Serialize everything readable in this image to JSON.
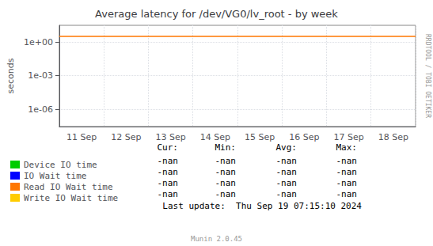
{
  "chart_data": {
    "type": "line",
    "title": "Average latency for /dev/VG0/lv_root - by week",
    "ylabel": "seconds",
    "categories": [
      "11 Sep",
      "12 Sep",
      "13 Sep",
      "14 Sep",
      "15 Sep",
      "16 Sep",
      "17 Sep",
      "18 Sep"
    ],
    "series": [
      {
        "name": "Device IO time",
        "color": "#00cc00",
        "values": [
          null,
          null,
          null,
          null,
          null,
          null,
          null,
          null
        ],
        "table_values": [
          "-nan",
          "-nan",
          "-nan",
          "-nan"
        ]
      },
      {
        "name": "IO Wait time",
        "color": "#0000ff",
        "values": [
          null,
          null,
          null,
          null,
          null,
          null,
          null,
          null
        ],
        "table_values": [
          "-nan",
          "-nan",
          "-nan",
          "-nan"
        ]
      },
      {
        "name": "Read IO Wait time",
        "color": "#ff7700",
        "values": [
          null,
          null,
          null,
          null,
          null,
          null,
          null,
          null
        ],
        "table_values": [
          "-nan",
          "-nan",
          "-nan",
          "-nan"
        ]
      },
      {
        "name": "Write IO Wait time",
        "color": "#ffcc00",
        "values": [
          null,
          null,
          null,
          null,
          null,
          null,
          null,
          null
        ],
        "table_values": [
          "-nan",
          "-nan",
          "-nan",
          "-nan"
        ]
      }
    ],
    "table_headers": [
      "Cur:",
      "Min:",
      "Avg:",
      "Max:"
    ],
    "reference_line": {
      "value": 3.0,
      "color": "#ff7700"
    },
    "annotations": [
      "Last update:  Thu Sep 19 07:15:10 2024",
      "Munin 2.0.45",
      "RRDTOOL / TOBI OETIKER"
    ],
    "ylim": [
      3e-08,
      30
    ],
    "yticks": [
      {
        "value": 1.0,
        "label": "1e+00"
      },
      {
        "value": 0.001,
        "label": "1e-03"
      },
      {
        "value": 1e-06,
        "label": "1e-06"
      }
    ],
    "log": "y",
    "grid": true,
    "legend": "bottom left"
  }
}
